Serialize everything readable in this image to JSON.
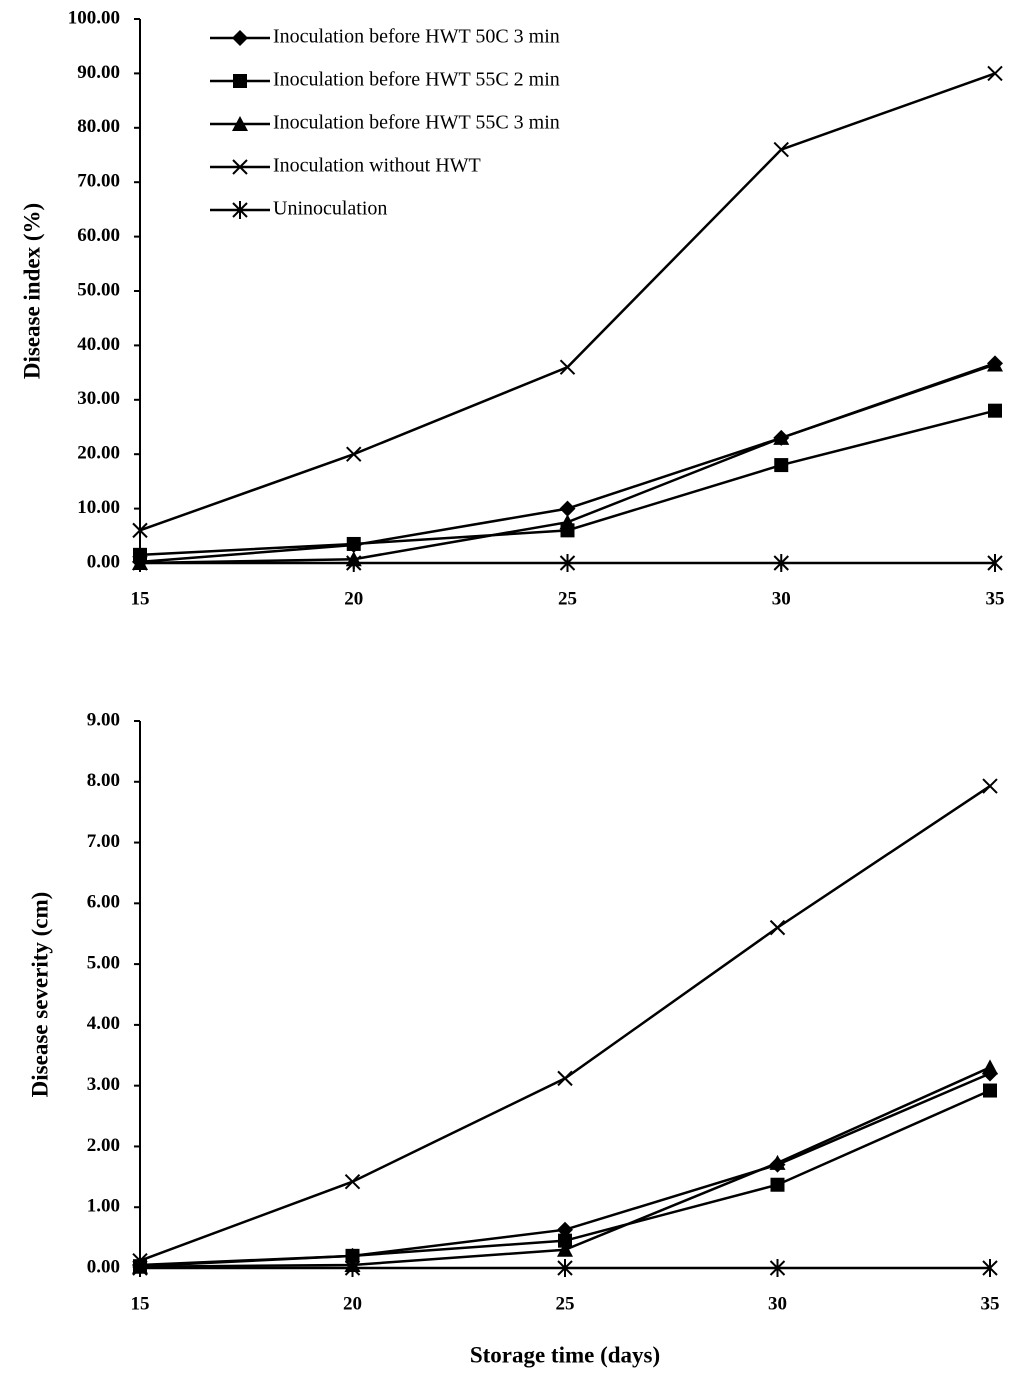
{
  "chart_data": [
    {
      "type": "line",
      "ylabel": "Disease index (%)",
      "x": [
        15,
        20,
        25,
        30,
        35
      ],
      "xlim": [
        15,
        35
      ],
      "xticks": [
        15,
        20,
        25,
        30,
        35
      ],
      "ylim": [
        0,
        100
      ],
      "yticks": [
        {
          "value": 0,
          "label": "0.00"
        },
        {
          "value": 10,
          "label": "10.00"
        },
        {
          "value": 20,
          "label": "20.00"
        },
        {
          "value": 30,
          "label": "30.00"
        },
        {
          "value": 40,
          "label": "40.00"
        },
        {
          "value": 50,
          "label": "50.00"
        },
        {
          "value": 60,
          "label": "60.00"
        },
        {
          "value": 70,
          "label": "70.00"
        },
        {
          "value": 80,
          "label": "80.00"
        },
        {
          "value": 90,
          "label": "90.00"
        },
        {
          "value": 100,
          "label": "100.00"
        }
      ],
      "legend": "top-left",
      "series": [
        {
          "name": "Inoculation before HWT 50C 3 min",
          "color": "#000000",
          "marker": "diamond",
          "values": [
            0.2,
            3.3,
            10,
            23,
            36.7
          ]
        },
        {
          "name": "Inoculation before HWT 55C 2 min",
          "color": "#000000",
          "marker": "square",
          "values": [
            1.5,
            3.5,
            6,
            18,
            28
          ]
        },
        {
          "name": "Inoculation before HWT 55C 3 min",
          "color": "#000000",
          "marker": "triangle",
          "values": [
            0,
            0.7,
            7.5,
            23,
            36.5
          ]
        },
        {
          "name": "Inoculation without HWT",
          "color": "#000000",
          "marker": "x",
          "values": [
            6,
            20,
            36,
            76,
            90
          ]
        },
        {
          "name": "Uninoculation",
          "color": "#000000",
          "marker": "star",
          "values": [
            0,
            0,
            0,
            0,
            0
          ]
        }
      ]
    },
    {
      "type": "line",
      "ylabel": "Disease severity (cm)",
      "xlabel": "Storage time (days)",
      "x": [
        15,
        20,
        25,
        30,
        35
      ],
      "xlim": [
        15,
        35
      ],
      "xticks": [
        15,
        20,
        25,
        30,
        35
      ],
      "ylim": [
        0,
        9
      ],
      "yticks": [
        {
          "value": 0,
          "label": "0.00"
        },
        {
          "value": 1,
          "label": "1.00"
        },
        {
          "value": 2,
          "label": "2.00"
        },
        {
          "value": 3,
          "label": "3.00"
        },
        {
          "value": 4,
          "label": "4.00"
        },
        {
          "value": 5,
          "label": "5.00"
        },
        {
          "value": 6,
          "label": "6.00"
        },
        {
          "value": 7,
          "label": "7.00"
        },
        {
          "value": 8,
          "label": "8.00"
        },
        {
          "value": 9,
          "label": "9.00"
        }
      ],
      "series": [
        {
          "color": "#000000",
          "marker": "diamond",
          "values": [
            0.05,
            0.2,
            0.63,
            1.7,
            3.2
          ]
        },
        {
          "color": "#000000",
          "marker": "square",
          "values": [
            0.03,
            0.2,
            0.45,
            1.37,
            2.92
          ]
        },
        {
          "color": "#000000",
          "marker": "triangle",
          "values": [
            0.02,
            0.05,
            0.3,
            1.73,
            3.3
          ]
        },
        {
          "color": "#000000",
          "marker": "x",
          "values": [
            0.12,
            1.42,
            3.12,
            5.6,
            7.93
          ]
        },
        {
          "color": "#000000",
          "marker": "star",
          "values": [
            0,
            0,
            0,
            0,
            0
          ]
        }
      ]
    }
  ]
}
